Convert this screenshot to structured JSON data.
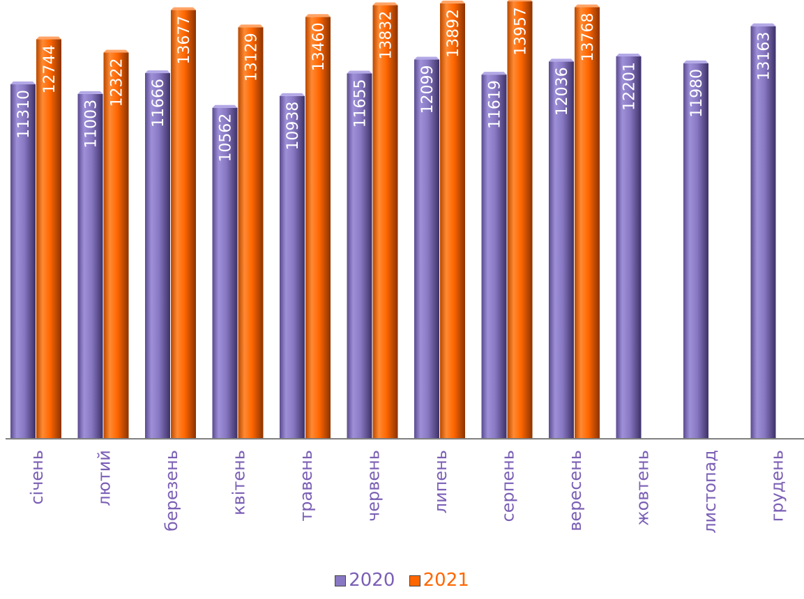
{
  "chart_data": {
    "type": "bar",
    "categories": [
      "січень",
      "лютий",
      "березень",
      "квітень",
      "травень",
      "червень",
      "липень",
      "серпень",
      "вересень",
      "жовтень",
      "листопад",
      "грудень"
    ],
    "series": [
      {
        "name": "2020",
        "color": "#8878C3",
        "values": [
          11310,
          11003,
          11666,
          10562,
          10938,
          11655,
          12099,
          11619,
          12036,
          12201,
          11980,
          13163
        ]
      },
      {
        "name": "2021",
        "color": "#FF6600",
        "values": [
          12744,
          12322,
          13677,
          13129,
          13460,
          13832,
          13892,
          13957,
          13768,
          null,
          null,
          null
        ]
      }
    ],
    "title": "",
    "xlabel": "",
    "ylabel": "",
    "ylim": [
      0,
      14000
    ],
    "grid": false,
    "legend_position": "bottom",
    "label_color": "#7B5FB5",
    "data_label_color": "#ffffff"
  }
}
